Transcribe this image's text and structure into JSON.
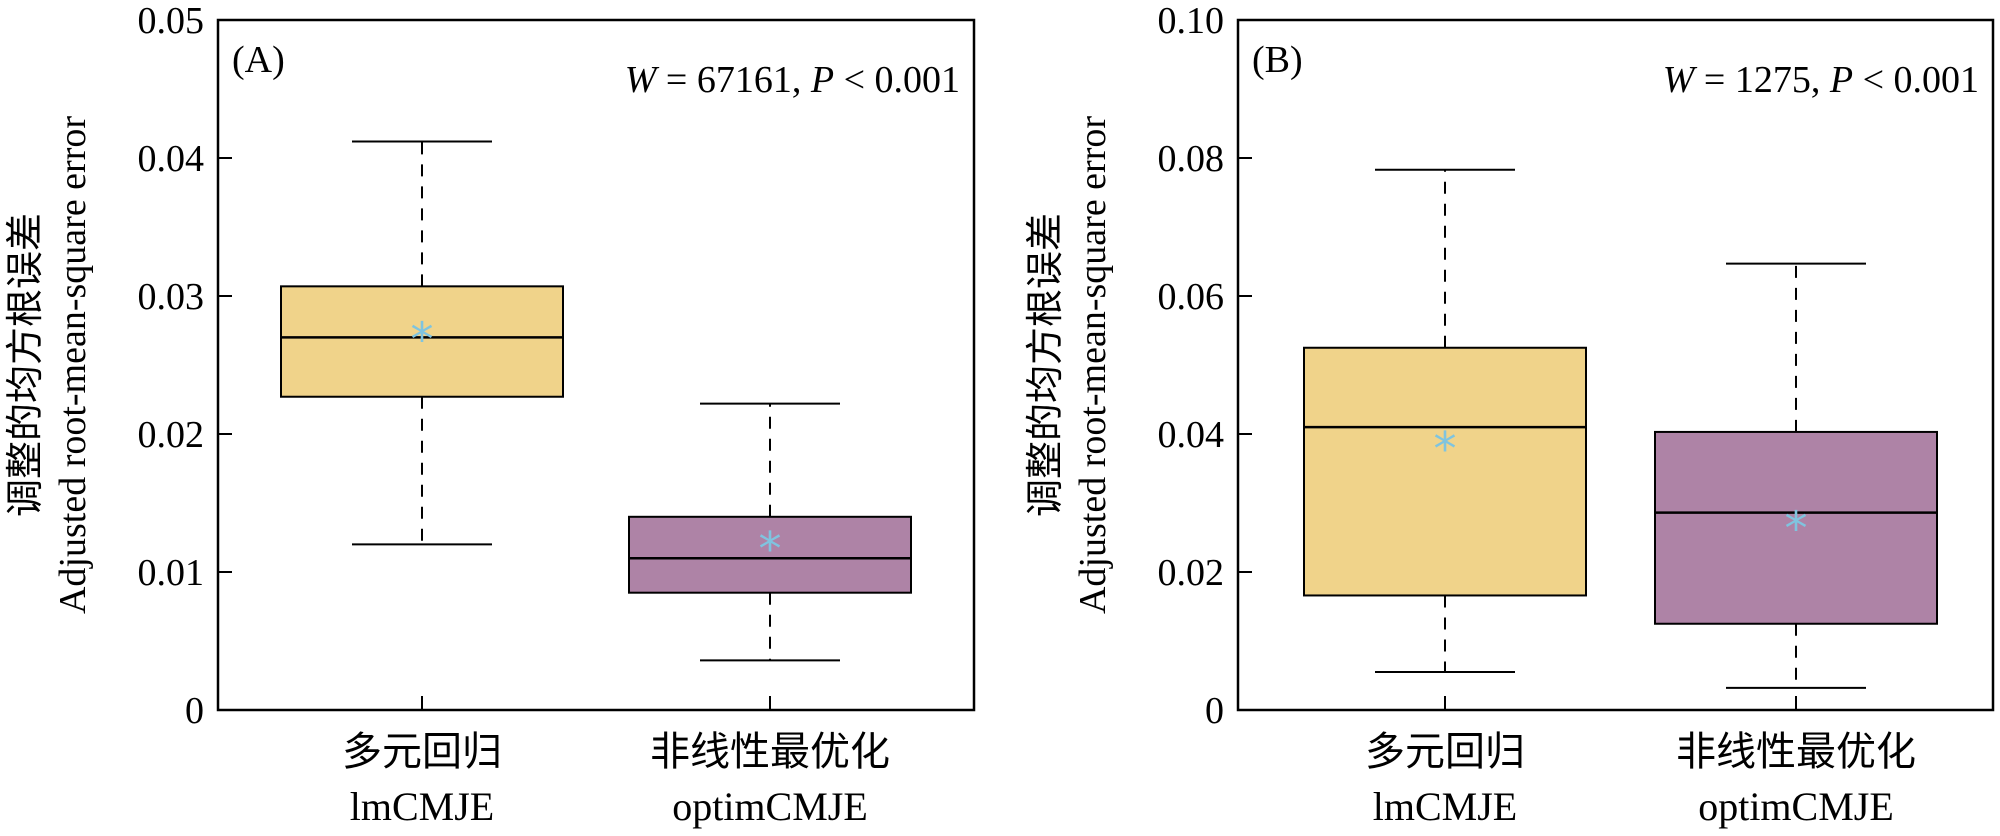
{
  "chart_data": [
    {
      "type": "box",
      "panel_label": "(A)",
      "annotation": {
        "w_label": "W",
        "w_text": " = 67161, ",
        "p_label": "P",
        "p_text": " < 0.001"
      },
      "ylabel_cn": "调整的均方根误差",
      "ylabel_en": "Adjusted root-mean-square error",
      "ylim": [
        0,
        0.05
      ],
      "yticks": [
        0,
        0.01,
        0.02,
        0.03,
        0.04,
        0.05
      ],
      "ytick_labels": [
        "0",
        "0.01",
        "0.02",
        "0.03",
        "0.04",
        "0.05"
      ],
      "categories": [
        {
          "label_cn": "多元回归",
          "label_en": "lmCMJE",
          "whisker_low": 0.012,
          "q1": 0.0227,
          "median": 0.027,
          "q3": 0.0307,
          "whisker_high": 0.0412,
          "mean": 0.0273,
          "color": "#F0D38A"
        },
        {
          "label_cn": "非线性最优化",
          "label_en": "optimCMJE",
          "whisker_low": 0.0036,
          "q1": 0.0085,
          "median": 0.011,
          "q3": 0.014,
          "whisker_high": 0.0222,
          "mean": 0.0121,
          "color": "#AE83A6"
        }
      ],
      "mean_marker": "*",
      "mean_color": "#7FC4DF"
    },
    {
      "type": "box",
      "panel_label": "(B)",
      "annotation": {
        "w_label": "W",
        "w_text": " = 1275, ",
        "p_label": "P",
        "p_text": " < 0.001"
      },
      "ylabel_cn": "调整的均方根误差",
      "ylabel_en": "Adjusted root-mean-square error",
      "ylim": [
        0,
        0.1
      ],
      "yticks": [
        0,
        0.02,
        0.04,
        0.06,
        0.08,
        0.1
      ],
      "ytick_labels": [
        "0",
        "0.02",
        "0.04",
        "0.06",
        "0.08",
        "0.10"
      ],
      "categories": [
        {
          "label_cn": "多元回归",
          "label_en": "lmCMJE",
          "whisker_low": 0.0055,
          "q1": 0.0166,
          "median": 0.041,
          "q3": 0.0525,
          "whisker_high": 0.0783,
          "mean": 0.0387,
          "color": "#F0D38A"
        },
        {
          "label_cn": "非线性最优化",
          "label_en": "optimCMJE",
          "whisker_low": 0.0032,
          "q1": 0.0125,
          "median": 0.0286,
          "q3": 0.0403,
          "whisker_high": 0.0647,
          "mean": 0.0272,
          "color": "#AE83A6"
        }
      ],
      "mean_marker": "*",
      "mean_color": "#7FC4DF"
    }
  ]
}
